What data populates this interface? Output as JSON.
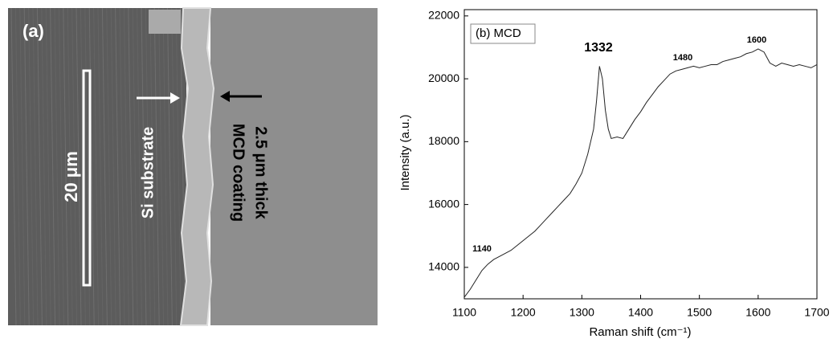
{
  "image_panel": {
    "label": "(a)",
    "scale_bar": "20 μm",
    "annotations": [
      "Si substrate",
      "2.5 μm thick",
      "MCD coating"
    ]
  },
  "chart_data": {
    "type": "line",
    "panel_label": "(b) MCD",
    "x_label": "Raman shift (cm⁻¹)",
    "y_label": "Intensity (a.u.)",
    "x": [
      1100,
      1110,
      1120,
      1130,
      1140,
      1150,
      1160,
      1170,
      1180,
      1190,
      1200,
      1210,
      1220,
      1230,
      1240,
      1250,
      1260,
      1270,
      1280,
      1290,
      1300,
      1310,
      1320,
      1325,
      1330,
      1335,
      1340,
      1345,
      1350,
      1360,
      1370,
      1380,
      1390,
      1400,
      1410,
      1420,
      1430,
      1440,
      1450,
      1460,
      1470,
      1480,
      1490,
      1500,
      1510,
      1520,
      1530,
      1540,
      1550,
      1560,
      1570,
      1580,
      1590,
      1600,
      1610,
      1620,
      1630,
      1640,
      1650,
      1660,
      1670,
      1680,
      1690,
      1700
    ],
    "values": [
      13050,
      13300,
      13600,
      13900,
      14100,
      14250,
      14350,
      14450,
      14550,
      14700,
      14850,
      15000,
      15150,
      15350,
      15550,
      15750,
      15950,
      16150,
      16350,
      16650,
      17000,
      17600,
      18400,
      19300,
      20400,
      20000,
      19000,
      18400,
      18100,
      18150,
      18100,
      18400,
      18700,
      18950,
      19250,
      19500,
      19750,
      19950,
      20150,
      20250,
      20300,
      20350,
      20400,
      20350,
      20400,
      20450,
      20450,
      20550,
      20600,
      20650,
      20700,
      20800,
      20850,
      20950,
      20850,
      20500,
      20400,
      20500,
      20450,
      20400,
      20450,
      20400,
      20350,
      20450
    ],
    "color": "#222222",
    "annotations": [
      "1332",
      "1480",
      "1600",
      "1140"
    ],
    "xlim": [
      1100,
      1700
    ],
    "xticks": [
      1100,
      1200,
      1300,
      1400,
      1500,
      1600,
      1700
    ],
    "ylim": [
      13000,
      22200
    ],
    "yticks": [
      14000,
      16000,
      18000,
      20000,
      22000
    ]
  }
}
